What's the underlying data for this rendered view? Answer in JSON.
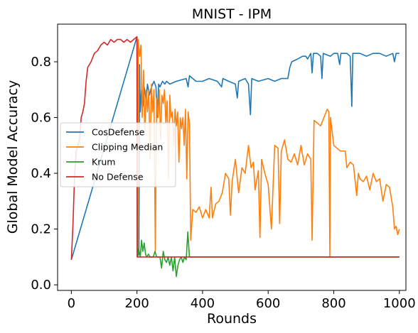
{
  "chart_data": {
    "type": "line",
    "title": "MNIST - IPM",
    "xlabel": "Rounds",
    "ylabel": "Global Model Accuracy",
    "xlim": [
      -42,
      1020
    ],
    "ylim": [
      -0.02,
      0.935
    ],
    "xticks": [
      0,
      200,
      400,
      600,
      800,
      1000
    ],
    "yticks": [
      0.0,
      0.2,
      0.4,
      0.6,
      0.8
    ],
    "xtick_labels": [
      "0",
      "200",
      "400",
      "600",
      "800",
      "1000"
    ],
    "ytick_labels": [
      "0.0",
      "0.2",
      "0.4",
      "0.6",
      "0.8"
    ],
    "grid": false,
    "legend_position": "center-left",
    "series": [
      {
        "name": "CosDefense",
        "color": "#1f77b4",
        "points": [
          [
            0,
            0.09
          ],
          [
            200,
            0.89
          ],
          [
            201,
            0.1
          ],
          [
            206,
            0.11
          ],
          [
            208,
            0.79
          ],
          [
            210,
            0.62
          ],
          [
            214,
            0.7
          ],
          [
            218,
            0.64
          ],
          [
            222,
            0.71
          ],
          [
            228,
            0.66
          ],
          [
            232,
            0.72
          ],
          [
            238,
            0.68
          ],
          [
            242,
            0.7
          ],
          [
            248,
            0.72
          ],
          [
            252,
            0.73
          ],
          [
            258,
            0.71
          ],
          [
            262,
            0.6
          ],
          [
            266,
            0.72
          ],
          [
            270,
            0.71
          ],
          [
            278,
            0.73
          ],
          [
            285,
            0.72
          ],
          [
            290,
            0.73
          ],
          [
            300,
            0.72
          ],
          [
            320,
            0.73
          ],
          [
            350,
            0.74
          ],
          [
            356,
            0.71
          ],
          [
            360,
            0.75
          ],
          [
            380,
            0.73
          ],
          [
            400,
            0.73
          ],
          [
            420,
            0.74
          ],
          [
            445,
            0.73
          ],
          [
            458,
            0.71
          ],
          [
            462,
            0.74
          ],
          [
            480,
            0.73
          ],
          [
            500,
            0.72
          ],
          [
            506,
            0.67
          ],
          [
            510,
            0.73
          ],
          [
            530,
            0.74
          ],
          [
            540,
            0.72
          ],
          [
            546,
            0.61
          ],
          [
            550,
            0.74
          ],
          [
            570,
            0.73
          ],
          [
            600,
            0.74
          ],
          [
            620,
            0.73
          ],
          [
            640,
            0.74
          ],
          [
            660,
            0.74
          ],
          [
            666,
            0.78
          ],
          [
            672,
            0.8
          ],
          [
            690,
            0.81
          ],
          [
            705,
            0.82
          ],
          [
            715,
            0.82
          ],
          [
            720,
            0.81
          ],
          [
            730,
            0.83
          ],
          [
            734,
            0.76
          ],
          [
            738,
            0.83
          ],
          [
            750,
            0.83
          ],
          [
            760,
            0.82
          ],
          [
            764,
            0.74
          ],
          [
            768,
            0.83
          ],
          [
            790,
            0.82
          ],
          [
            800,
            0.83
          ],
          [
            812,
            0.83
          ],
          [
            818,
            0.79
          ],
          [
            822,
            0.83
          ],
          [
            840,
            0.83
          ],
          [
            850,
            0.82
          ],
          [
            855,
            0.64
          ],
          [
            858,
            0.83
          ],
          [
            880,
            0.83
          ],
          [
            900,
            0.82
          ],
          [
            920,
            0.83
          ],
          [
            940,
            0.83
          ],
          [
            960,
            0.82
          ],
          [
            980,
            0.83
          ],
          [
            985,
            0.8
          ],
          [
            990,
            0.83
          ],
          [
            1000,
            0.83
          ]
        ]
      },
      {
        "name": "Clipping Median",
        "color": "#ff7f0e",
        "points": [
          [
            200,
            0.89
          ],
          [
            202,
            0.1
          ],
          [
            204,
            0.88
          ],
          [
            208,
            0.82
          ],
          [
            212,
            0.86
          ],
          [
            216,
            0.6
          ],
          [
            220,
            0.77
          ],
          [
            224,
            0.55
          ],
          [
            228,
            0.7
          ],
          [
            232,
            0.62
          ],
          [
            236,
            0.7
          ],
          [
            240,
            0.45
          ],
          [
            244,
            0.72
          ],
          [
            248,
            0.62
          ],
          [
            252,
            0.7
          ],
          [
            256,
            0.12
          ],
          [
            260,
            0.67
          ],
          [
            264,
            0.6
          ],
          [
            268,
            0.7
          ],
          [
            272,
            0.52
          ],
          [
            276,
            0.68
          ],
          [
            280,
            0.65
          ],
          [
            284,
            0.7
          ],
          [
            288,
            0.58
          ],
          [
            292,
            0.66
          ],
          [
            296,
            0.38
          ],
          [
            300,
            0.68
          ],
          [
            304,
            0.6
          ],
          [
            308,
            0.62
          ],
          [
            312,
            0.5
          ],
          [
            316,
            0.63
          ],
          [
            320,
            0.57
          ],
          [
            324,
            0.62
          ],
          [
            328,
            0.44
          ],
          [
            332,
            0.6
          ],
          [
            336,
            0.56
          ],
          [
            340,
            0.6
          ],
          [
            344,
            0.5
          ],
          [
            348,
            0.63
          ],
          [
            352,
            0.38
          ],
          [
            356,
            0.62
          ],
          [
            360,
            0.58
          ],
          [
            364,
            0.16
          ],
          [
            370,
            0.27
          ],
          [
            380,
            0.26
          ],
          [
            390,
            0.28
          ],
          [
            400,
            0.24
          ],
          [
            410,
            0.27
          ],
          [
            420,
            0.24
          ],
          [
            426,
            0.35
          ],
          [
            430,
            0.24
          ],
          [
            440,
            0.29
          ],
          [
            450,
            0.3
          ],
          [
            460,
            0.33
          ],
          [
            470,
            0.4
          ],
          [
            480,
            0.38
          ],
          [
            485,
            0.25
          ],
          [
            490,
            0.37
          ],
          [
            500,
            0.45
          ],
          [
            510,
            0.33
          ],
          [
            520,
            0.42
          ],
          [
            530,
            0.4
          ],
          [
            540,
            0.5
          ],
          [
            548,
            0.42
          ],
          [
            555,
            0.44
          ],
          [
            560,
            0.34
          ],
          [
            570,
            0.41
          ],
          [
            575,
            0.17
          ],
          [
            580,
            0.45
          ],
          [
            590,
            0.4
          ],
          [
            600,
            0.36
          ],
          [
            610,
            0.2
          ],
          [
            620,
            0.5
          ],
          [
            630,
            0.49
          ],
          [
            635,
            0.22
          ],
          [
            640,
            0.48
          ],
          [
            650,
            0.52
          ],
          [
            660,
            0.45
          ],
          [
            670,
            0.44
          ],
          [
            680,
            0.47
          ],
          [
            690,
            0.43
          ],
          [
            700,
            0.5
          ],
          [
            710,
            0.43
          ],
          [
            720,
            0.47
          ],
          [
            730,
            0.45
          ],
          [
            734,
            0.16
          ],
          [
            740,
            0.59
          ],
          [
            750,
            0.58
          ],
          [
            760,
            0.57
          ],
          [
            770,
            0.6
          ],
          [
            780,
            0.63
          ],
          [
            785,
            0.62
          ],
          [
            788,
            0.1
          ],
          [
            790,
            0.6
          ],
          [
            800,
            0.5
          ],
          [
            820,
            0.48
          ],
          [
            835,
            0.48
          ],
          [
            840,
            0.42
          ],
          [
            850,
            0.44
          ],
          [
            860,
            0.43
          ],
          [
            870,
            0.32
          ],
          [
            875,
            0.4
          ],
          [
            880,
            0.38
          ],
          [
            890,
            0.37
          ],
          [
            900,
            0.39
          ],
          [
            910,
            0.34
          ],
          [
            920,
            0.4
          ],
          [
            930,
            0.37
          ],
          [
            940,
            0.38
          ],
          [
            950,
            0.3
          ],
          [
            960,
            0.36
          ],
          [
            970,
            0.35
          ],
          [
            980,
            0.28
          ],
          [
            985,
            0.2
          ],
          [
            990,
            0.21
          ],
          [
            995,
            0.18
          ],
          [
            1000,
            0.2
          ]
        ]
      },
      {
        "name": "Krum",
        "color": "#2ca02c",
        "points": [
          [
            200,
            0.89
          ],
          [
            201,
            0.1
          ],
          [
            205,
            0.13
          ],
          [
            210,
            0.1
          ],
          [
            214,
            0.16
          ],
          [
            218,
            0.12
          ],
          [
            222,
            0.15
          ],
          [
            226,
            0.11
          ],
          [
            230,
            0.1
          ],
          [
            235,
            0.11
          ],
          [
            240,
            0.1
          ],
          [
            250,
            0.1
          ],
          [
            255,
            0.12
          ],
          [
            260,
            0.1
          ],
          [
            270,
            0.1
          ],
          [
            275,
            0.06
          ],
          [
            280,
            0.12
          ],
          [
            285,
            0.09
          ],
          [
            290,
            0.08
          ],
          [
            295,
            0.1
          ],
          [
            300,
            0.07
          ],
          [
            305,
            0.1
          ],
          [
            310,
            0.05
          ],
          [
            315,
            0.1
          ],
          [
            320,
            0.03
          ],
          [
            325,
            0.07
          ],
          [
            330,
            0.09
          ],
          [
            335,
            0.1
          ],
          [
            340,
            0.08
          ],
          [
            345,
            0.1
          ],
          [
            350,
            0.09
          ],
          [
            355,
            0.19
          ],
          [
            360,
            0.1
          ],
          [
            1000,
            0.1
          ]
        ]
      },
      {
        "name": "No Defense",
        "color": "#d62728",
        "points": [
          [
            0,
            0.09
          ],
          [
            5,
            0.22
          ],
          [
            10,
            0.4
          ],
          [
            15,
            0.48
          ],
          [
            20,
            0.5
          ],
          [
            25,
            0.52
          ],
          [
            30,
            0.6
          ],
          [
            35,
            0.62
          ],
          [
            40,
            0.65
          ],
          [
            45,
            0.73
          ],
          [
            50,
            0.78
          ],
          [
            60,
            0.8
          ],
          [
            70,
            0.83
          ],
          [
            80,
            0.84
          ],
          [
            90,
            0.86
          ],
          [
            100,
            0.87
          ],
          [
            110,
            0.86
          ],
          [
            120,
            0.88
          ],
          [
            130,
            0.87
          ],
          [
            140,
            0.88
          ],
          [
            150,
            0.88
          ],
          [
            160,
            0.87
          ],
          [
            170,
            0.88
          ],
          [
            180,
            0.87
          ],
          [
            190,
            0.88
          ],
          [
            200,
            0.89
          ],
          [
            201,
            0.1
          ],
          [
            1000,
            0.1
          ]
        ]
      }
    ]
  }
}
